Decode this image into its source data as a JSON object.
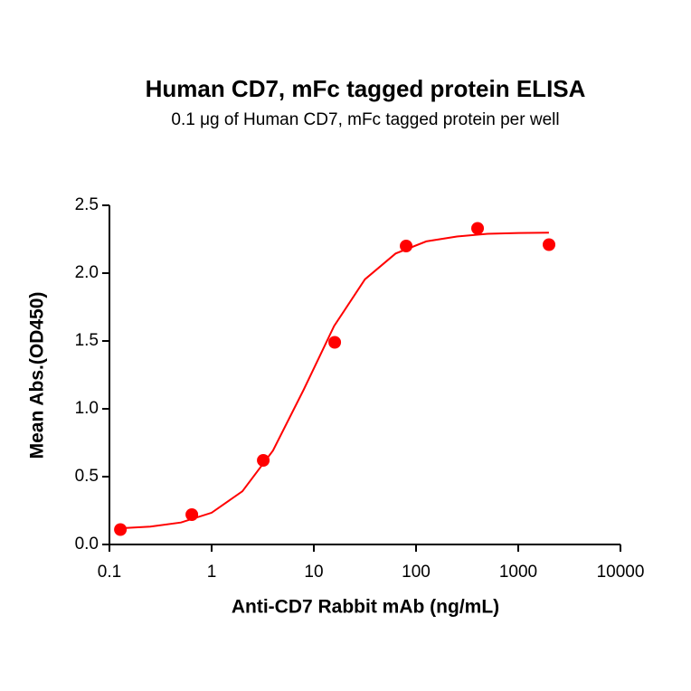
{
  "chart_data": {
    "type": "scatter",
    "title": "Human CD7, mFc tagged protein ELISA",
    "subtitle": "0.1 μg of Human CD7, mFc tagged protein per well",
    "x_label": "Anti-CD7 Rabbit mAb (ng/mL)",
    "y_label": "Mean Abs.(OD450)",
    "x_scale": "log",
    "xlim": [
      0.1,
      10000
    ],
    "xticks": [
      0.1,
      1,
      10,
      100,
      1000,
      10000
    ],
    "ylim": [
      0,
      2.5
    ],
    "yticks": [
      {
        "value": 0,
        "label": "0.0"
      },
      0.5,
      {
        "value": 1,
        "label": "1.0"
      },
      1.5,
      {
        "value": 2,
        "label": "2.0"
      },
      2.5
    ],
    "series": [
      {
        "mode": "markers",
        "color": "#ff0000",
        "x": [
          0.128,
          0.64,
          3.2,
          16,
          80,
          400,
          2000
        ],
        "values": [
          0.11,
          0.22,
          0.62,
          1.49,
          2.2,
          2.33,
          2.21
        ]
      },
      {
        "mode": "line",
        "color": "#ff0000",
        "x": [
          0.126,
          0.251,
          0.501,
          1,
          2,
          3.98,
          7.94,
          15.8,
          31.6,
          63.1,
          126,
          251,
          501,
          1000,
          1995
        ],
        "values": [
          0.119,
          0.132,
          0.162,
          0.234,
          0.392,
          0.692,
          1.14,
          1.61,
          1.955,
          2.145,
          2.234,
          2.27,
          2.29,
          2.296,
          2.298
        ]
      }
    ]
  }
}
